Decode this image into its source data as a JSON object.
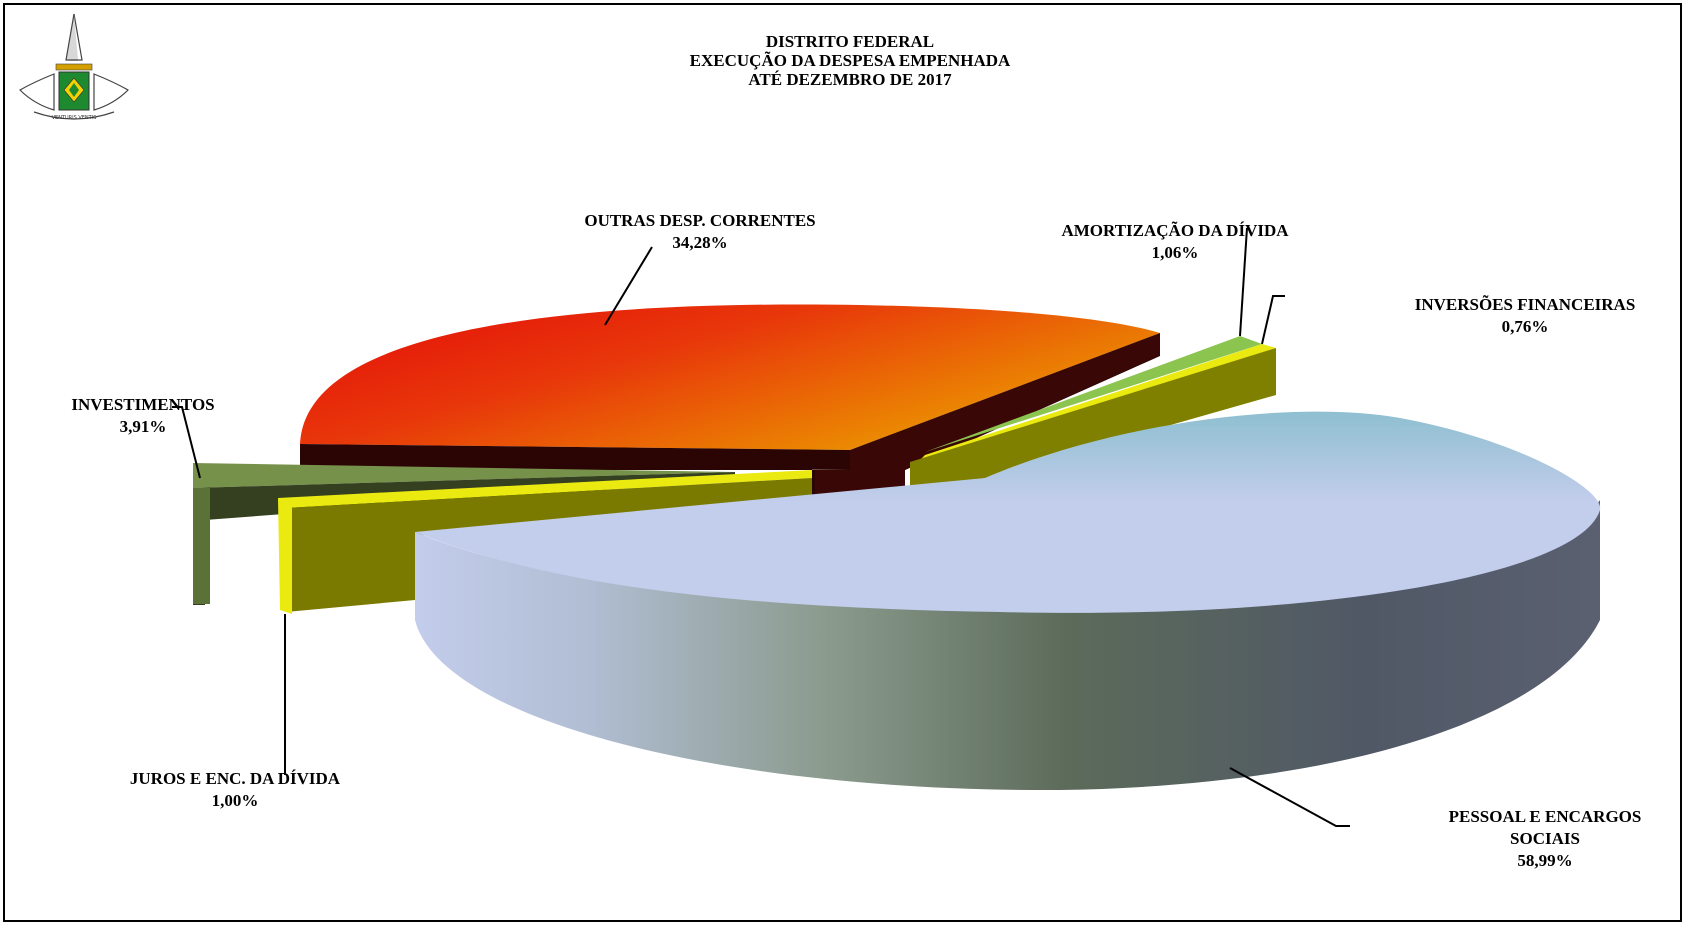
{
  "chart_data": {
    "type": "pie",
    "title": [
      "DISTRITO FEDERAL",
      "EXECUÇÃO DA DESPESA EMPENHADA",
      "ATÉ  DEZEMBRO DE 2017"
    ],
    "three_d": true,
    "exploded": true,
    "slices": [
      {
        "label": "PESSOAL E ENCARGOS SOCIAIS",
        "label_lines": [
          "PESSOAL E ENCARGOS",
          "SOCIAIS"
        ],
        "value": 58.99,
        "value_text": "58,99%",
        "color": "#c3cdec"
      },
      {
        "label": "JUROS E ENC. DA DÍVIDA",
        "value": 1.0,
        "value_text": "1,00%",
        "color": "#7a7a00"
      },
      {
        "label": "INVESTIMENTOS",
        "value": 3.91,
        "value_text": "3,91%",
        "color": "#76914a"
      },
      {
        "label": "OUTRAS DESP. CORRENTES",
        "value": 34.28,
        "value_text": "34,28%",
        "color": "#e8380a"
      },
      {
        "label": "AMORTIZAÇÃO DA DÍVIDA",
        "value": 1.06,
        "value_text": "1,06%",
        "color": "#8cc450"
      },
      {
        "label": "INVERSÕES FINANCEIRAS",
        "value": 0.76,
        "value_text": "0,76%",
        "color": "#eaea10"
      }
    ]
  },
  "colors": {
    "pessoal_top_light": "#c3cdec",
    "pessoal_top_dark": "#8ebfd0",
    "outras_red": "#e40a0a",
    "outras_orange": "#ec9a00",
    "olive": "#7a7a00",
    "investimentos_green": "#76914a",
    "amortizacao_green": "#8cc450",
    "inversoes_yellow": "#eaea10"
  },
  "logo": {
    "icon": "brasilia-coat-of-arms-icon",
    "motto": "VENTURIS VENTIS"
  }
}
